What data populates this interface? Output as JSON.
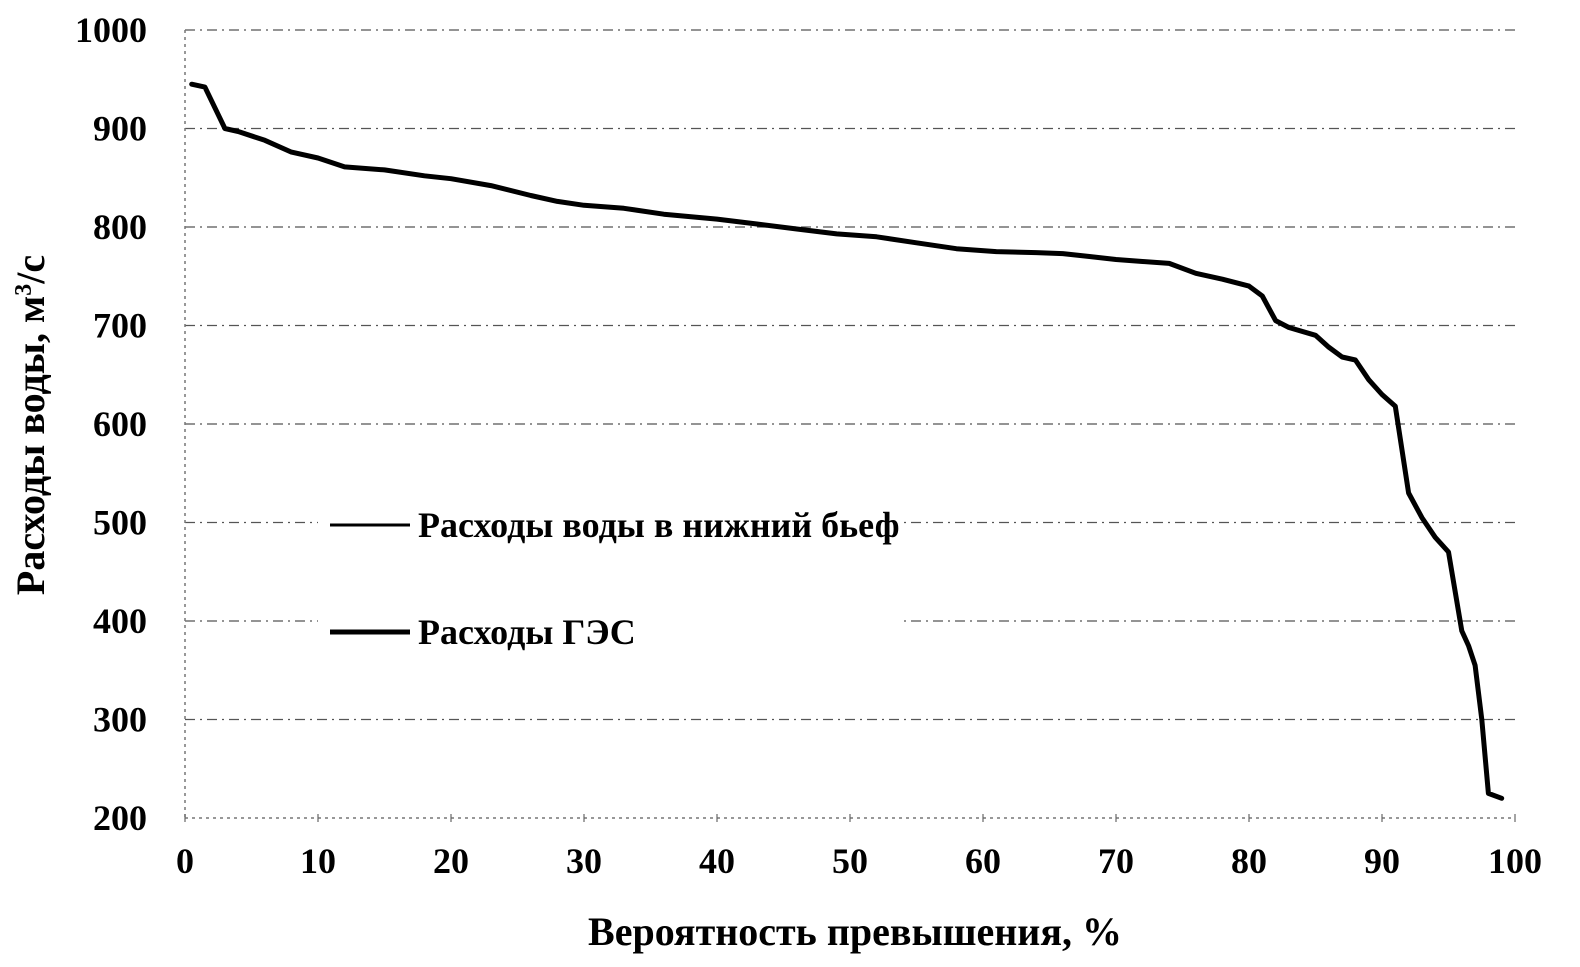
{
  "chart_data": {
    "type": "line",
    "title": "",
    "xlabel": "Вероятность превышения, %",
    "ylabel_main": "Расходы воды, м",
    "ylabel_sup": "3",
    "ylabel_tail": "/с",
    "xlim": [
      0,
      100
    ],
    "ylim": [
      200,
      1000
    ],
    "xticks": [
      0,
      10,
      20,
      30,
      40,
      50,
      60,
      70,
      80,
      90,
      100
    ],
    "yticks": [
      200,
      300,
      400,
      500,
      600,
      700,
      800,
      900,
      1000
    ],
    "grid": true,
    "legend_position": "center-left",
    "line_color": "#000000",
    "series": [
      {
        "name": "Расходы воды в нижний бьеф",
        "x": [
          0.5,
          1.5,
          3,
          4,
          6,
          8,
          10,
          12,
          15,
          18,
          20,
          23,
          26,
          28,
          30,
          33,
          36,
          40,
          43,
          46,
          49,
          52,
          55,
          58,
          61,
          64,
          66,
          68,
          70,
          72,
          74,
          76,
          78,
          80,
          81,
          82,
          83,
          85,
          86,
          87,
          88,
          89,
          90,
          91,
          92,
          93,
          94,
          95,
          96,
          96.5,
          97,
          97.5,
          98,
          99
        ],
        "values": [
          945,
          942,
          900,
          897,
          888,
          876,
          870,
          861,
          858,
          852,
          849,
          842,
          832,
          826,
          822,
          819,
          813,
          808,
          803,
          798,
          793,
          790,
          784,
          778,
          775,
          774,
          773,
          770,
          767,
          765,
          763,
          753,
          747,
          740,
          730,
          705,
          698,
          690,
          678,
          668,
          665,
          645,
          630,
          618,
          530,
          505,
          485,
          470,
          390,
          375,
          355,
          300,
          225,
          220
        ]
      },
      {
        "name": "Расходы ГЭС",
        "x": [
          0.5,
          1.5,
          3,
          4,
          6,
          8,
          10,
          12,
          15,
          18,
          20,
          23,
          26,
          28,
          30,
          33,
          36,
          40,
          43,
          46,
          49,
          52,
          55,
          58,
          61,
          64,
          66,
          68,
          70,
          72,
          74,
          76,
          78,
          80,
          81,
          82,
          83,
          85,
          86,
          87,
          88,
          89,
          90,
          91,
          92,
          93,
          94,
          95,
          96,
          96.5,
          97,
          97.5,
          98,
          99
        ],
        "values": [
          945,
          942,
          900,
          897,
          888,
          876,
          870,
          861,
          858,
          852,
          849,
          842,
          832,
          826,
          822,
          819,
          813,
          808,
          803,
          798,
          793,
          790,
          784,
          778,
          775,
          774,
          773,
          770,
          767,
          765,
          763,
          753,
          747,
          740,
          730,
          705,
          698,
          690,
          678,
          668,
          665,
          645,
          630,
          618,
          530,
          505,
          485,
          470,
          390,
          375,
          355,
          300,
          225,
          220
        ]
      }
    ]
  }
}
